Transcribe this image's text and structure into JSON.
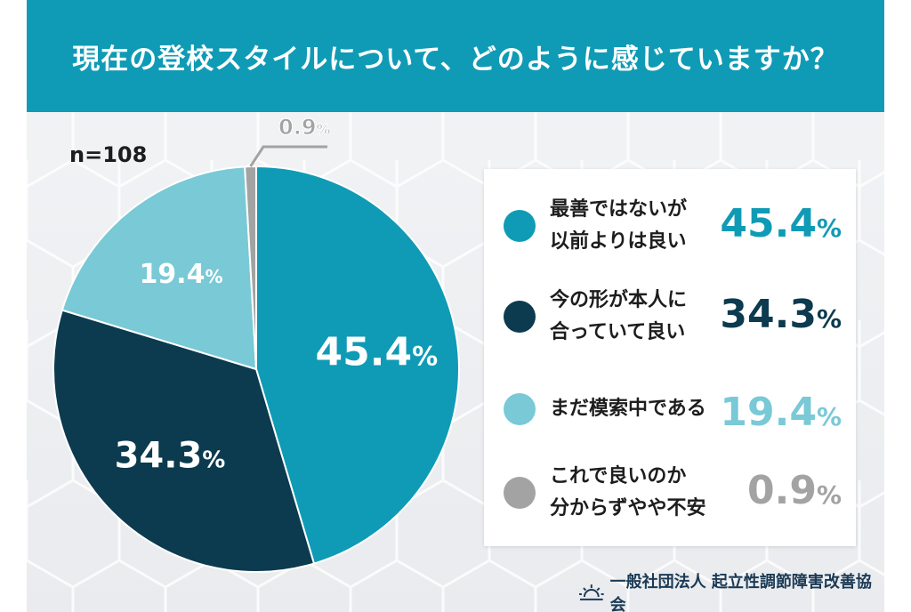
{
  "header": {
    "title": "現在の登校スタイルについて、どのように感じていますか？"
  },
  "sample_size": "n=108",
  "chart_data": {
    "type": "pie",
    "title": "現在の登校スタイルについて、どのように感じていますか？",
    "unit": "%",
    "slices": [
      {
        "label": "最善ではないが以前よりは良い",
        "label_lines": [
          "最善ではないが",
          "以前よりは良い"
        ],
        "value": 45.4,
        "display": "45.4",
        "color": "#0f9bb5"
      },
      {
        "label": "今の形が本人に合っていて良い",
        "label_lines": [
          "今の形が本人に",
          "合っていて良い"
        ],
        "value": 34.3,
        "display": "34.3",
        "color": "#0c3a4f"
      },
      {
        "label": "まだ模索中である",
        "label_lines": [
          "まだ模索中である"
        ],
        "value": 19.4,
        "display": "19.4",
        "color": "#79c9d6"
      },
      {
        "label": "これで良いのか分からずやや不安",
        "label_lines": [
          "これで良いのか",
          "分からずやや不安"
        ],
        "value": 0.9,
        "display": "0.9",
        "color": "#a3a3a3"
      }
    ]
  },
  "footer": {
    "organization": "一般社団法人 起立性調節障害改善協会",
    "logo_icon": "sunrise-icon"
  }
}
